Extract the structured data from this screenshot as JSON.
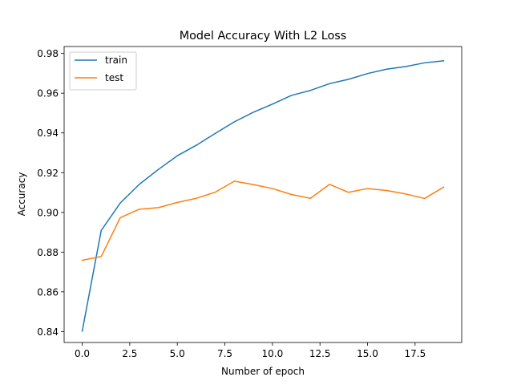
{
  "chart_data": {
    "type": "line",
    "title": "Model Accuracy With L2 Loss",
    "xlabel": "Number of epoch",
    "ylabel": "Accuracy",
    "xlim": [
      -0.95,
      19.95
    ],
    "ylim": [
      0.8345,
      0.9835
    ],
    "x_ticks": [
      0.0,
      2.5,
      5.0,
      7.5,
      10.0,
      12.5,
      15.0,
      17.5
    ],
    "x_tick_labels": [
      "0.0",
      "2.5",
      "5.0",
      "7.5",
      "10.0",
      "12.5",
      "15.0",
      "17.5"
    ],
    "y_ticks": [
      0.84,
      0.86,
      0.88,
      0.9,
      0.92,
      0.94,
      0.96,
      0.98
    ],
    "y_tick_labels": [
      "0.84",
      "0.86",
      "0.88",
      "0.90",
      "0.92",
      "0.94",
      "0.96",
      "0.98"
    ],
    "grid": false,
    "legend_position": "top-left",
    "x": [
      0,
      1,
      2,
      3,
      4,
      5,
      6,
      7,
      8,
      9,
      10,
      11,
      12,
      13,
      14,
      15,
      16,
      17,
      18,
      19
    ],
    "series": [
      {
        "name": "train",
        "color": "#1f77b4",
        "values": [
          0.8402,
          0.8909,
          0.9047,
          0.9141,
          0.9216,
          0.9285,
          0.9338,
          0.9398,
          0.9456,
          0.9504,
          0.9545,
          0.9589,
          0.9614,
          0.9648,
          0.967,
          0.9699,
          0.9721,
          0.9734,
          0.9753,
          0.9763
        ]
      },
      {
        "name": "test",
        "color": "#ff7f0e",
        "values": [
          0.8759,
          0.8778,
          0.8973,
          0.9016,
          0.9024,
          0.905,
          0.9071,
          0.9102,
          0.9157,
          0.914,
          0.912,
          0.909,
          0.9071,
          0.9141,
          0.9101,
          0.912,
          0.911,
          0.9093,
          0.907,
          0.9127
        ]
      }
    ]
  }
}
